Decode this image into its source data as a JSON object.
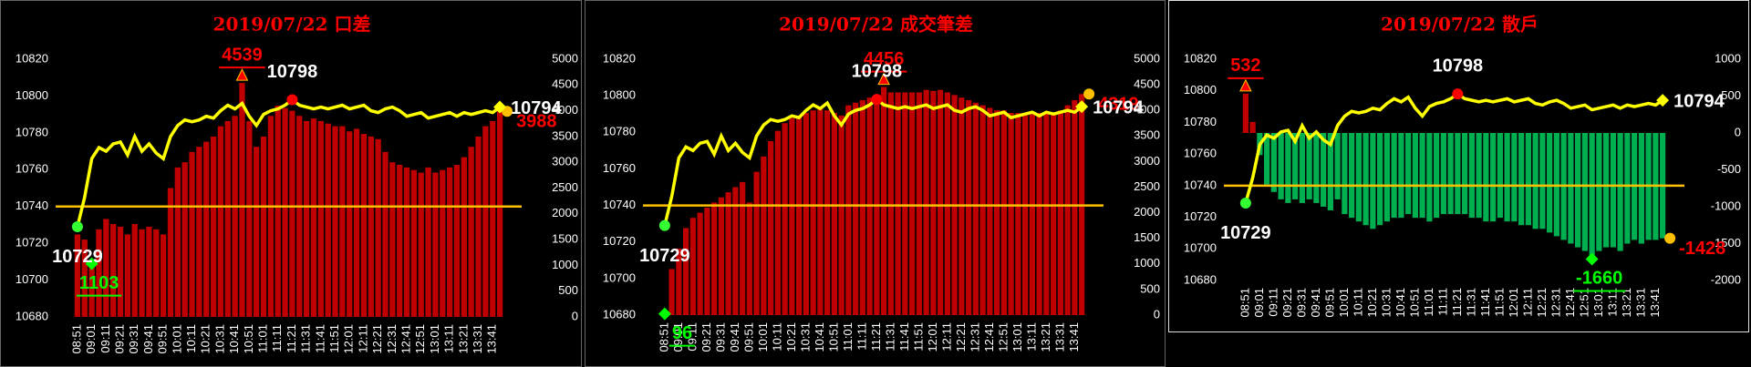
{
  "chart_data": [
    {
      "type": "bar-line",
      "title": "2019/07/22 口差",
      "categories": [
        "08:51",
        null,
        "09:01",
        null,
        "09:11",
        null,
        "09:21",
        null,
        "09:31",
        null,
        "09:41",
        null,
        "09:51",
        null,
        "10:01",
        null,
        "10:11",
        null,
        "10:21",
        null,
        "10:31",
        null,
        "10:41",
        null,
        "10:51",
        null,
        "11:01",
        null,
        "11:11",
        null,
        "11:21",
        null,
        "11:31",
        null,
        "11:41",
        null,
        "11:51",
        null,
        "12:01",
        null,
        "12:11",
        null,
        "12:21",
        null,
        "12:31",
        null,
        "12:41",
        null,
        "12:51",
        null,
        "13:01",
        null,
        "13:11",
        null,
        "13:21",
        null,
        "13:31",
        null,
        "13:41",
        null
      ],
      "ylim": [
        10680,
        10820
      ],
      "yticks": [
        10680,
        10700,
        10720,
        10740,
        10760,
        10780,
        10800,
        10820
      ],
      "y2lim": [
        0,
        5000
      ],
      "y2ticks": [
        0,
        500,
        1000,
        1500,
        2000,
        2500,
        3000,
        3500,
        4000,
        4500,
        5000
      ],
      "reference_line": {
        "value": 10740,
        "color": "#ffc000"
      },
      "series": [
        {
          "type": "bar",
          "axis": "y2",
          "color": "#c00000",
          "negative_color": "#00b050",
          "values": [
            1600,
            1500,
            1103,
            1700,
            1900,
            1800,
            1750,
            1600,
            1800,
            1700,
            1750,
            1700,
            1600,
            2500,
            2900,
            3000,
            3200,
            3300,
            3400,
            3500,
            3700,
            3800,
            3900,
            4539,
            3800,
            3300,
            3500,
            3900,
            4100,
            4050,
            4000,
            3900,
            3800,
            3850,
            3800,
            3750,
            3700,
            3700,
            3600,
            3650,
            3550,
            3500,
            3450,
            3200,
            3000,
            2950,
            2900,
            2850,
            2800,
            2900,
            2800,
            2850,
            2900,
            2950,
            3100,
            3300,
            3500,
            3700,
            3800,
            3988
          ]
        },
        {
          "type": "line",
          "color": "#ffff00",
          "values": [
            10729,
            10745,
            10766,
            10772,
            10770,
            10774,
            10775,
            10768,
            10778,
            10770,
            10774,
            10769,
            10766,
            10778,
            10784,
            10787,
            10786,
            10787,
            10789,
            10788,
            10792,
            10795,
            10793,
            10796,
            10789,
            10784,
            10790,
            10792,
            10793,
            10795,
            10798,
            10795,
            10794,
            10793,
            10794,
            10793,
            10794,
            10795,
            10793,
            10794,
            10795,
            10792,
            10791,
            10793,
            10794,
            10792,
            10789,
            10790,
            10791,
            10788,
            10789,
            10790,
            10791,
            10789,
            10791,
            10790,
            10791,
            10792,
            10791,
            10794
          ]
        }
      ]
    },
    {
      "type": "bar-line",
      "title": "2019/07/22 成交筆差",
      "categories": [
        "08:51",
        null,
        "09:01",
        null,
        "09:11",
        null,
        "09:21",
        null,
        "09:31",
        null,
        "09:41",
        null,
        "09:51",
        null,
        "10:01",
        null,
        "10:11",
        null,
        "10:21",
        null,
        "10:31",
        null,
        "10:41",
        null,
        "10:51",
        null,
        "11:01",
        null,
        "11:11",
        null,
        "11:21",
        null,
        "11:31",
        null,
        "11:41",
        null,
        "11:51",
        null,
        "12:01",
        null,
        "12:11",
        null,
        "12:21",
        null,
        "12:31",
        null,
        "12:41",
        null,
        "12:51",
        null,
        "13:01",
        null,
        "13:11",
        null,
        "13:21",
        null,
        "13:31",
        null,
        "13:41",
        null
      ],
      "ylim": [
        10680,
        10820
      ],
      "yticks": [
        10680,
        10700,
        10720,
        10740,
        10760,
        10780,
        10800,
        10820
      ],
      "y2lim": [
        0,
        5000
      ],
      "y2ticks": [
        0,
        500,
        1000,
        1500,
        2000,
        2500,
        3000,
        3500,
        4000,
        4500,
        5000
      ],
      "reference_line": {
        "value": 10740,
        "color": "#ffc000"
      },
      "series": [
        {
          "type": "bar",
          "axis": "y2",
          "color": "#c00000",
          "negative_color": "#00b050",
          "values": [
            96,
            900,
            1300,
            1700,
            1900,
            2000,
            2100,
            2200,
            2300,
            2400,
            2500,
            2600,
            2200,
            2800,
            3100,
            3400,
            3600,
            3750,
            3850,
            3900,
            3950,
            4000,
            4050,
            4000,
            3950,
            3900,
            4100,
            4150,
            4200,
            4250,
            4300,
            4456,
            4350,
            4350,
            4350,
            4350,
            4350,
            4400,
            4380,
            4400,
            4350,
            4300,
            4250,
            4200,
            4150,
            4100,
            4050,
            4000,
            4000,
            3950,
            3950,
            3950,
            3950,
            3950,
            3950,
            3950,
            4000,
            4100,
            4200,
            4319
          ]
        },
        {
          "type": "line",
          "color": "#ffff00",
          "values": [
            10729,
            10745,
            10766,
            10772,
            10770,
            10774,
            10775,
            10768,
            10778,
            10770,
            10774,
            10769,
            10766,
            10778,
            10784,
            10787,
            10786,
            10787,
            10789,
            10788,
            10792,
            10795,
            10793,
            10796,
            10789,
            10784,
            10790,
            10792,
            10793,
            10795,
            10798,
            10795,
            10794,
            10793,
            10794,
            10793,
            10794,
            10795,
            10793,
            10794,
            10795,
            10792,
            10791,
            10793,
            10794,
            10792,
            10789,
            10790,
            10791,
            10788,
            10789,
            10790,
            10791,
            10789,
            10791,
            10790,
            10791,
            10792,
            10791,
            10794
          ]
        }
      ]
    },
    {
      "type": "bar-line",
      "title": "2019/07/22 散戶",
      "categories": [
        "08:51",
        null,
        "09:01",
        null,
        "09:11",
        null,
        "09:21",
        null,
        "09:31",
        null,
        "09:41",
        null,
        "09:51",
        null,
        "10:01",
        null,
        "10:11",
        null,
        "10:21",
        null,
        "10:31",
        null,
        "10:41",
        null,
        "10:51",
        null,
        "11:01",
        null,
        "11:11",
        null,
        "11:21",
        null,
        "11:31",
        null,
        "11:41",
        null,
        "11:51",
        null,
        "12:01",
        null,
        "12:11",
        null,
        "12:21",
        null,
        "12:31",
        null,
        "12:41",
        null,
        "12:51",
        null,
        "13:01",
        null,
        "13:11",
        null,
        "13:21",
        null,
        "13:31",
        null,
        "13:41",
        null
      ],
      "ylim": [
        10680,
        10820
      ],
      "yticks": [
        10680,
        10700,
        10720,
        10740,
        10760,
        10780,
        10800,
        10820
      ],
      "y2lim": [
        -2000,
        1000
      ],
      "y2ticks": [
        -2000,
        -1500,
        -1000,
        -500,
        0,
        500,
        1000
      ],
      "reference_line": {
        "value": 10740,
        "color": "#ffc000"
      },
      "series": [
        {
          "type": "bar",
          "axis": "y2",
          "color": "#c00000",
          "negative_color": "#00b050",
          "values": [
            532,
            150,
            -300,
            -700,
            -800,
            -900,
            -950,
            -900,
            -950,
            -900,
            -950,
            -1000,
            -1050,
            -900,
            -1100,
            -1150,
            -1200,
            -1250,
            -1300,
            -1250,
            -1200,
            -1150,
            -1150,
            -1100,
            -1150,
            -1150,
            -1200,
            -1150,
            -1100,
            -1100,
            -1100,
            -1100,
            -1150,
            -1150,
            -1200,
            -1200,
            -1150,
            -1200,
            -1200,
            -1250,
            -1250,
            -1300,
            -1300,
            -1350,
            -1400,
            -1450,
            -1500,
            -1550,
            -1600,
            -1660,
            -1600,
            -1550,
            -1550,
            -1600,
            -1500,
            -1450,
            -1500,
            -1450,
            -1450,
            -1428
          ]
        },
        {
          "type": "line",
          "color": "#ffff00",
          "values": [
            10729,
            10745,
            10766,
            10772,
            10770,
            10774,
            10775,
            10768,
            10778,
            10770,
            10774,
            10769,
            10766,
            10778,
            10784,
            10787,
            10786,
            10787,
            10789,
            10788,
            10792,
            10795,
            10793,
            10796,
            10789,
            10784,
            10790,
            10792,
            10793,
            10795,
            10798,
            10795,
            10794,
            10793,
            10794,
            10793,
            10794,
            10795,
            10793,
            10794,
            10795,
            10792,
            10791,
            10793,
            10794,
            10792,
            10789,
            10790,
            10791,
            10788,
            10789,
            10790,
            10791,
            10789,
            10791,
            10790,
            10791,
            10792,
            10791,
            10794
          ]
        }
      ]
    }
  ]
}
